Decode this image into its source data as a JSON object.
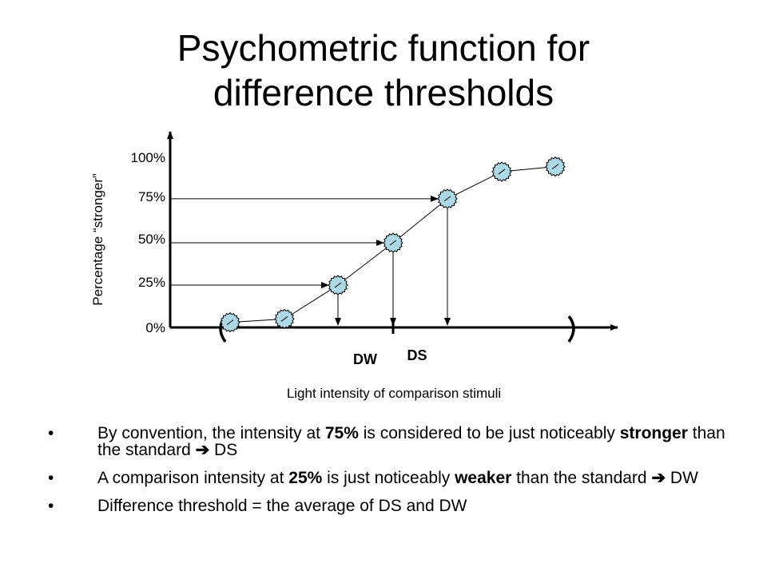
{
  "slide": {
    "title_line1": "Psychometric function for",
    "title_line2": "difference thresholds"
  },
  "chart_data": {
    "type": "line",
    "xlabel": "Light intensity of comparison stimuli",
    "ylabel": "Percentage “stronger”",
    "y_ticks": [
      "0%",
      "25%",
      "50%",
      "75%",
      "100%"
    ],
    "ylim": [
      0,
      100
    ],
    "series": [
      {
        "values": [
          3,
          5,
          25,
          50,
          76,
          92,
          95
        ]
      }
    ],
    "threshold_labels": {
      "dw": "DW",
      "ds": "DS"
    },
    "marker_color": "#add8e6",
    "line_color": "#000000"
  },
  "bullets": [
    {
      "marker": "•",
      "parts": [
        {
          "t": "By convention, the intensity at ",
          "b": false
        },
        {
          "t": "75%",
          "b": true
        },
        {
          "t": " is considered to be just noticeably ",
          "b": false
        },
        {
          "t": "stronger",
          "b": true
        },
        {
          "t": " than the standard ",
          "b": false
        },
        {
          "t": "➔",
          "b": true
        },
        {
          "t": " DS",
          "b": false
        }
      ]
    },
    {
      "marker": "•",
      "parts": [
        {
          "t": "A comparison intensity at ",
          "b": false
        },
        {
          "t": "25%",
          "b": true
        },
        {
          "t": " is just noticeably ",
          "b": false
        },
        {
          "t": "weaker",
          "b": true
        },
        {
          "t": " than the standard ",
          "b": false
        },
        {
          "t": "➔",
          "b": true
        },
        {
          "t": " DW",
          "b": false
        }
      ]
    },
    {
      "marker": "•",
      "parts": [
        {
          "t": "Difference threshold = the average of DS and DW",
          "b": false
        }
      ]
    }
  ]
}
